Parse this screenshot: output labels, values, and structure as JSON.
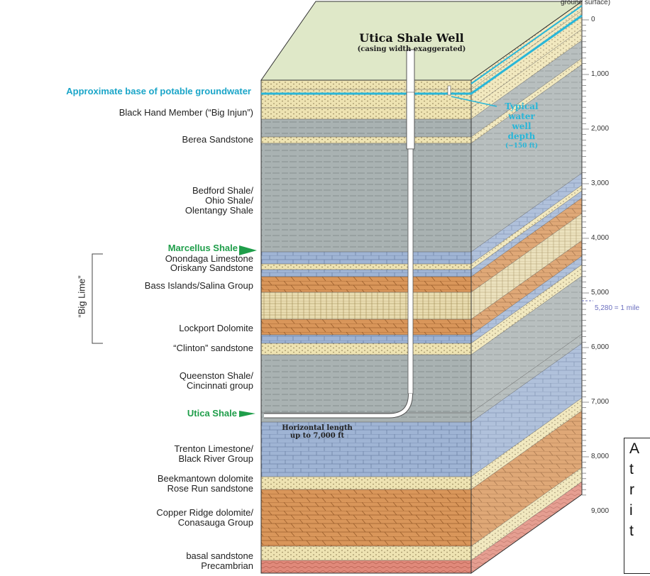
{
  "well": {
    "title": "Utica Shale Well",
    "subtitle": "(casing width exaggerated)",
    "horizontal_line1": "Horizontal length",
    "horizontal_line2": "up to 7,000 ft",
    "water_line1": "Typical",
    "water_line2": "water",
    "water_line3": "well",
    "water_line4": "depth",
    "water_line5": "(~150 ft)"
  },
  "layers": [
    {
      "label": "Approximate base of potable groundwater",
      "style": "cyan"
    },
    {
      "label": "Black Hand Member (“Big Injun”)",
      "style": "normal"
    },
    {
      "label": "Berea Sandstone",
      "style": "normal"
    },
    {
      "label": "Bedford Shale/",
      "style": "normal"
    },
    {
      "label": "Ohio Shale/",
      "style": "normal"
    },
    {
      "label": "Olentangy Shale",
      "style": "normal"
    },
    {
      "label": "Marcellus Shale",
      "style": "green"
    },
    {
      "label": "Onondaga Limestone",
      "style": "normal"
    },
    {
      "label": "Oriskany Sandstone",
      "style": "normal"
    },
    {
      "label": "Bass Islands/Salina Group",
      "style": "normal"
    },
    {
      "label": "Lockport Dolomite",
      "style": "normal"
    },
    {
      "label": "“Clinton” sandstone",
      "style": "normal"
    },
    {
      "label": "Queenston Shale/",
      "style": "normal"
    },
    {
      "label": "Cincinnati group",
      "style": "normal"
    },
    {
      "label": "Utica Shale",
      "style": "green"
    },
    {
      "label": "Trenton Limestone/",
      "style": "normal"
    },
    {
      "label": "Black River Group",
      "style": "normal"
    },
    {
      "label": "Beekmantown dolomite",
      "style": "normal"
    },
    {
      "label": "Rose Run sandstone",
      "style": "normal"
    },
    {
      "label": "Copper Ridge dolomite/",
      "style": "normal"
    },
    {
      "label": "Conasauga Group",
      "style": "normal"
    },
    {
      "label": "basal sandstone",
      "style": "normal"
    },
    {
      "label": "Precambrian",
      "style": "normal"
    }
  ],
  "big_lime": "“Big Lime”",
  "scale": {
    "header": "ground surface)",
    "ticks": [
      "0",
      "1,000",
      "2,000",
      "3,000",
      "4,000",
      "5,000",
      "6,000",
      "7,000",
      "8,000",
      "9,000"
    ],
    "mile_marker": "5,280 = 1 mile"
  },
  "note": [
    "A",
    "t",
    "r",
    "i",
    "t"
  ],
  "colors": {
    "top_face": "#dfe8c8",
    "shale": "#a9b2b2",
    "sandstone": "#eee3b2",
    "limestone": "#9fb4d4",
    "dolomite": "#d9965a",
    "precambrian": "#e0897a",
    "groundwater": "#29b6d8",
    "green_label": "#1f9e4a"
  }
}
